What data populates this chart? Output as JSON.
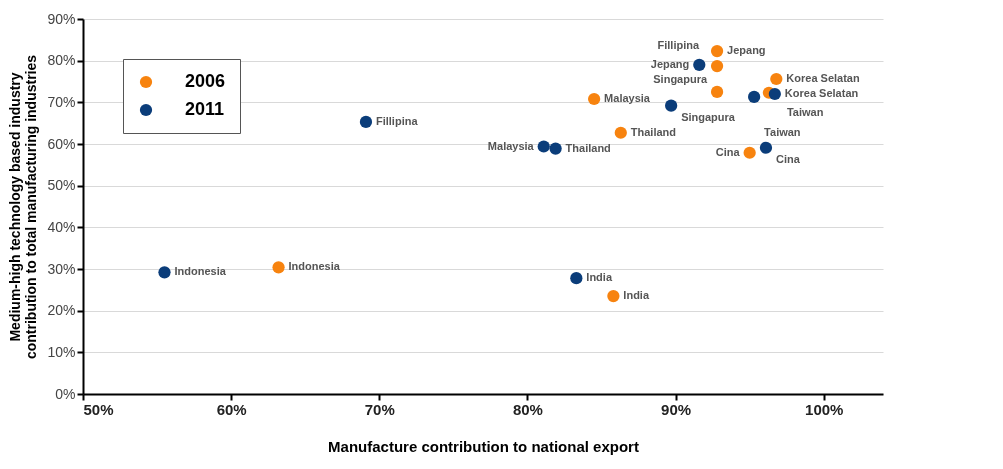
{
  "chart_data": {
    "type": "scatter",
    "xlabel": "Manufacture contribution to national export",
    "ylabel": "Medium-high technology based industry contribution to total manufacturing industries",
    "xlim": [
      50,
      104
    ],
    "ylim": [
      0,
      90
    ],
    "xticks": [
      {
        "value": 50,
        "label": "50%"
      },
      {
        "value": 60,
        "label": "60%"
      },
      {
        "value": 70,
        "label": "70%"
      },
      {
        "value": 80,
        "label": "80%"
      },
      {
        "value": 90,
        "label": "90%"
      },
      {
        "value": 100,
        "label": "100%"
      }
    ],
    "yticks": [
      {
        "value": 0,
        "label": "0%"
      },
      {
        "value": 10,
        "label": "10%"
      },
      {
        "value": 20,
        "label": "20%"
      },
      {
        "value": 30,
        "label": "30%"
      },
      {
        "value": 40,
        "label": "40%"
      },
      {
        "value": 50,
        "label": "50%"
      },
      {
        "value": 60,
        "label": "60%"
      },
      {
        "value": 70,
        "label": "70%"
      },
      {
        "value": 80,
        "label": "80%"
      },
      {
        "value": 90,
        "label": "90%"
      }
    ],
    "grid": "y",
    "legend": "top left",
    "marker": "circle",
    "series": [
      {
        "name": "2006",
        "color": "#f7830f",
        "x": [
          63.2,
          84.5,
          86.3,
          85.8,
          92.8,
          92.8,
          92.8,
          96.8,
          96.3,
          95.0
        ],
        "values": [
          30.4,
          70.8,
          62.7,
          23.5,
          82.3,
          78.7,
          72.5,
          75.6,
          72.3,
          57.9
        ]
      },
      {
        "name": "2011",
        "color": "#0b3d7a",
        "x": [
          55.5,
          69.1,
          81.1,
          81.9,
          83.3,
          91.6,
          89.7,
          95.3,
          96.7,
          96.1
        ],
        "values": [
          29.2,
          65.3,
          59.4,
          58.9,
          27.8,
          79.0,
          69.2,
          71.3,
          72.0,
          59.1
        ]
      }
    ],
    "annotations": [
      {
        "text": "Indonesia",
        "x": 63.2,
        "y": 30.4
      },
      {
        "text": "Malaysia",
        "x": 84.5,
        "y": 70.8
      },
      {
        "text": "Thailand",
        "x": 86.3,
        "y": 62.7
      },
      {
        "text": "India",
        "x": 85.8,
        "y": 23.5
      },
      {
        "text": "Jepang",
        "x": 92.8,
        "y": 82.3
      },
      {
        "text": "Fillipina",
        "x": 92.8,
        "y": 78.7
      },
      {
        "text": "Singapura",
        "x": 92.8,
        "y": 72.5
      },
      {
        "text": "Korea Selatan",
        "x": 96.8,
        "y": 75.6
      },
      {
        "text": "Taiwan",
        "x": 96.3,
        "y": 72.3
      },
      {
        "text": "Cina",
        "x": 95.0,
        "y": 57.9
      },
      {
        "text": "Indonesia",
        "x": 55.5,
        "y": 29.2
      },
      {
        "text": "Fillipina",
        "x": 69.1,
        "y": 65.3
      },
      {
        "text": "Malaysia",
        "x": 81.1,
        "y": 59.4
      },
      {
        "text": "Thailand",
        "x": 81.9,
        "y": 58.9
      },
      {
        "text": "India",
        "x": 83.3,
        "y": 27.8
      },
      {
        "text": "Jepang",
        "x": 91.6,
        "y": 79.0
      },
      {
        "text": "Singapura",
        "x": 89.7,
        "y": 69.2
      },
      {
        "text": "Taiwan",
        "x": 95.3,
        "y": 71.3
      },
      {
        "text": "Korea Selatan",
        "x": 96.7,
        "y": 72.0
      },
      {
        "text": "Cina",
        "x": 96.1,
        "y": 59.1
      }
    ]
  }
}
